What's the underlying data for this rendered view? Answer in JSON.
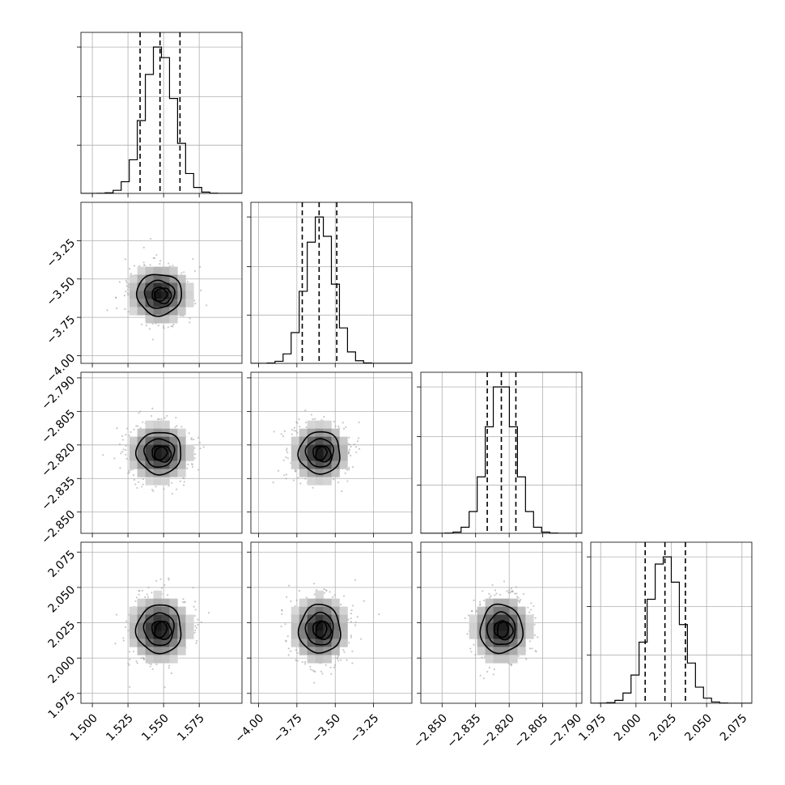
{
  "chart_data": {
    "type": "corner",
    "title": "",
    "parameters": [
      {
        "label": "",
        "range": [
          1.492,
          1.605
        ],
        "ticks": [
          1.5,
          1.525,
          1.55,
          1.575
        ],
        "tick_labels": [
          "1.500",
          "1.525",
          "1.550",
          "1.575"
        ],
        "mean": 1.547,
        "sigma": 0.0105,
        "quantiles": [
          1.5335,
          1.5475,
          1.5615
        ]
      },
      {
        "label": "",
        "range": [
          -4.05,
          -3.0
        ],
        "ticks": [
          -4.0,
          -3.75,
          -3.5,
          -3.25
        ],
        "tick_labels": [
          "−4.00",
          "−3.75",
          "−3.50",
          "−3.25"
        ],
        "mean": -3.6,
        "sigma": 0.09,
        "quantiles": [
          -3.715,
          -3.605,
          -3.49
        ]
      },
      {
        "label": "",
        "range": [
          -2.8595,
          -2.7875
        ],
        "ticks": [
          -2.85,
          -2.835,
          -2.82,
          -2.805,
          -2.79
        ],
        "tick_labels": [
          "−2.850",
          "−2.835",
          "−2.820",
          "−2.805",
          "−2.790"
        ],
        "mean": -2.8235,
        "sigma": 0.0063,
        "quantiles": [
          -2.8298,
          -2.8235,
          -2.817
        ]
      },
      {
        "label": "",
        "range": [
          1.968,
          2.082
        ],
        "ticks": [
          1.975,
          2.0,
          2.025,
          2.05,
          2.075
        ],
        "tick_labels": [
          "1.975",
          "2.000",
          "2.025",
          "2.050",
          "2.075"
        ],
        "mean": 2.0205,
        "sigma": 0.0115,
        "quantiles": [
          2.0065,
          2.0205,
          2.035
        ]
      }
    ],
    "histogram_bins": 20,
    "contour_levels": [
      0.5,
      1.0,
      1.5,
      2.0
    ],
    "grid": true,
    "colors": {
      "line": "#000000",
      "grid": "#b0b0b0",
      "scatter": "#9a9a9a"
    }
  }
}
